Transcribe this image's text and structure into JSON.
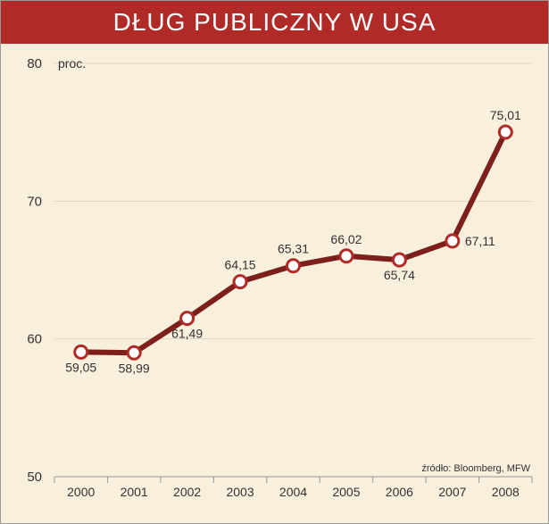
{
  "title": "DŁUG PUBLICZNY W USA",
  "chart": {
    "type": "line",
    "y_unit_label": "proc.",
    "categories": [
      "2000",
      "2001",
      "2002",
      "2003",
      "2004",
      "2005",
      "2006",
      "2007",
      "2008"
    ],
    "values": [
      59.05,
      58.99,
      61.49,
      64.15,
      65.31,
      66.02,
      65.74,
      67.11,
      75.01
    ],
    "value_labels": [
      "59,05",
      "58,99",
      "61,49",
      "64,15",
      "65,31",
      "66,02",
      "65,74",
      "67,11",
      "75,01"
    ],
    "value_label_pos": [
      "below",
      "below",
      "below",
      "above",
      "above",
      "above",
      "below",
      "right",
      "above"
    ],
    "ylim": [
      50,
      80
    ],
    "yticks": [
      50,
      60,
      70,
      80
    ],
    "line_color": "#7d201b",
    "line_width": 6,
    "marker_radius": 7,
    "marker_fill": "#ffffff",
    "marker_stroke": "#b02b27",
    "marker_stroke_width": 3,
    "background_color": "#f8efdd",
    "axis_color": "#999999",
    "grid_color": "#c7bda6",
    "title_bg": "#b02b27",
    "title_color": "#ffffff",
    "title_fontsize": 28,
    "tick_fontsize": 15,
    "value_fontsize": 14,
    "xtick_sep_color": "#999999"
  },
  "source": "źródło: Bloomberg, MFW"
}
